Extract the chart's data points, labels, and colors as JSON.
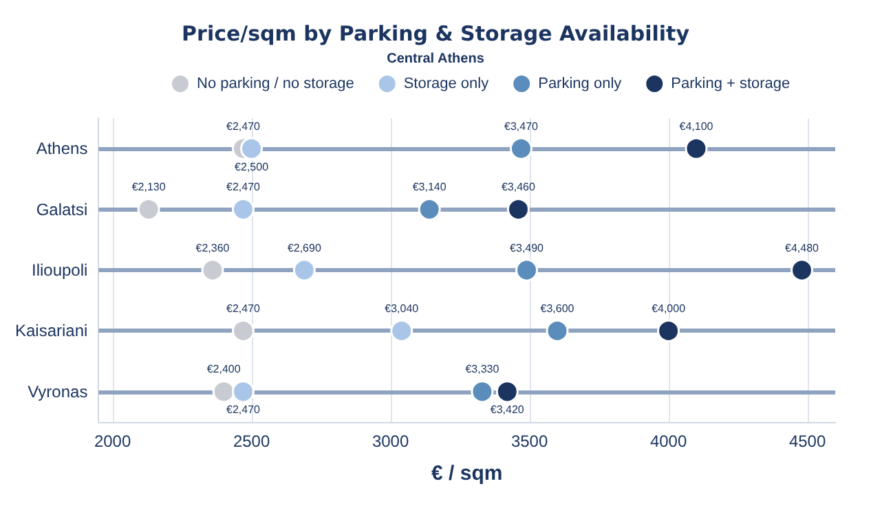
{
  "chart_data": {
    "type": "scatter",
    "orientation": "horizontal",
    "title": "Price/sqm by Parking & Storage Availability",
    "subtitle": "Central Athens",
    "xlabel": "€ / sqm",
    "categories": [
      "Athens",
      "Galatsi",
      "Ilioupoli",
      "Kaisariani",
      "Vyronas"
    ],
    "series": [
      {
        "name": "No parking / no storage",
        "color": "#c8cbd1",
        "values": [
          2470,
          2130,
          2360,
          2470,
          2400
        ],
        "value_labels": [
          "€2,470",
          "€2,130",
          "€2,360",
          "€2,470",
          "€2,400"
        ]
      },
      {
        "name": "Storage only",
        "color": "#a9c6e9",
        "values": [
          2500,
          2470,
          2690,
          3040,
          2470
        ],
        "value_labels": [
          "€2,500",
          "€2,470",
          "€2,690",
          "€3,040",
          "€2,470"
        ]
      },
      {
        "name": "Parking only",
        "color": "#5a8dbb",
        "values": [
          3470,
          3140,
          3490,
          3600,
          3330
        ],
        "value_labels": [
          "€3,470",
          "€3,140",
          "€3,490",
          "€3,600",
          "€3,330"
        ]
      },
      {
        "name": "Parking + storage",
        "color": "#1c3560",
        "values": [
          4100,
          3460,
          4480,
          4000,
          3420
        ],
        "value_labels": [
          "€4,100",
          "€3,460",
          "€4,480",
          "€4,000",
          "€3,420"
        ]
      }
    ],
    "xlim": [
      1950,
      4600
    ],
    "xticks": [
      2000,
      2500,
      3000,
      3500,
      4000,
      4500
    ],
    "grid": "x",
    "legend": "top",
    "marker": "circle"
  }
}
